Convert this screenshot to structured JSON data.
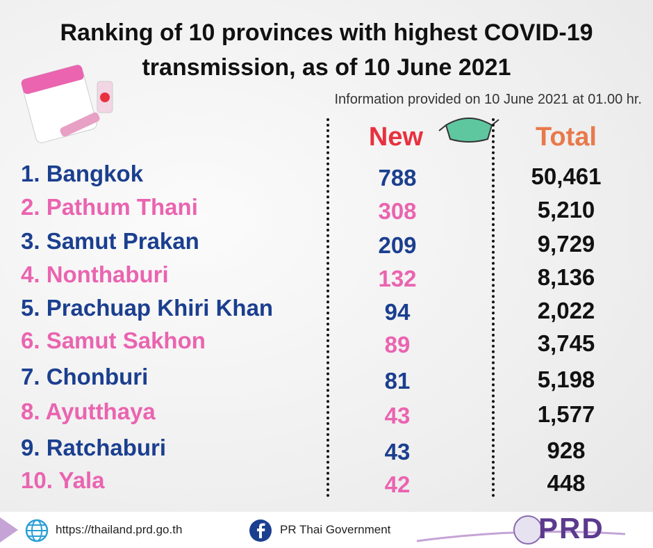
{
  "header": {
    "title_lines": [
      "Ranking of 10 provinces with highest COVID-19",
      "transmission, as of 10 June 2021"
    ],
    "subtitle": "Information provided on 10 June 2021 at 01.00 hr."
  },
  "table": {
    "columns": [
      "New",
      "Total"
    ],
    "rows": [
      [
        "1. Bangkok",
        "788",
        "50,461"
      ],
      [
        "2. Pathum Thani",
        "308",
        "5,210"
      ],
      [
        "3. Samut Prakan",
        "209",
        "9,729"
      ],
      [
        "4. Nonthaburi",
        "132",
        "8,136"
      ],
      [
        "5. Prachuap Khiri Khan",
        "94",
        "2,022"
      ],
      [
        "6. Samut Sakhon",
        "89",
        "3,745"
      ],
      [
        "7. Chonburi",
        "81",
        "5,198"
      ],
      [
        "8. Ayutthaya",
        "43",
        "1,577"
      ],
      [
        "9. Ratchaburi",
        "43",
        "928"
      ],
      [
        "10. Yala",
        "42",
        "448"
      ]
    ]
  },
  "footer": {
    "website": "https://thailand.prd.go.th",
    "facebook": "PR Thai Government",
    "logo": "PRD"
  }
}
